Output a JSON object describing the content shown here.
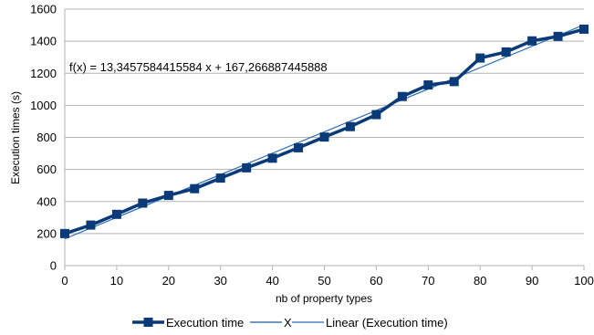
{
  "chart_data": {
    "type": "line",
    "xlabel": "nb of property types",
    "ylabel": "Execution times (s)",
    "xlim": [
      0,
      100
    ],
    "ylim": [
      0,
      1600
    ],
    "x_ticks": [
      0,
      10,
      20,
      30,
      40,
      50,
      60,
      70,
      80,
      90,
      100
    ],
    "y_ticks": [
      0,
      200,
      400,
      600,
      800,
      1000,
      1200,
      1400,
      1600
    ],
    "grid": "horizontal",
    "legend_position": "bottom",
    "x": [
      0,
      5,
      10,
      15,
      20,
      25,
      30,
      35,
      40,
      45,
      50,
      55,
      60,
      65,
      70,
      75,
      80,
      85,
      90,
      95,
      100
    ],
    "series": [
      {
        "name": "Execution time",
        "style": "line-with-square-markers",
        "color": "#0a3a78",
        "values": [
          200,
          253,
          320,
          390,
          438,
          480,
          546,
          610,
          670,
          735,
          802,
          867,
          942,
          1055,
          1127,
          1148,
          1295,
          1333,
          1402,
          1430,
          1475
        ]
      }
    ],
    "reference_lines": [
      {
        "name": "X",
        "color": "#1f5a9c"
      },
      {
        "name": "Linear (Execution time)",
        "color": "#2a6bb5",
        "slope": 13.3457584415584,
        "intercept": 167.266887445888
      }
    ],
    "annotation": "f(x) = 13,3457584415584 x + 167,266887445888"
  }
}
